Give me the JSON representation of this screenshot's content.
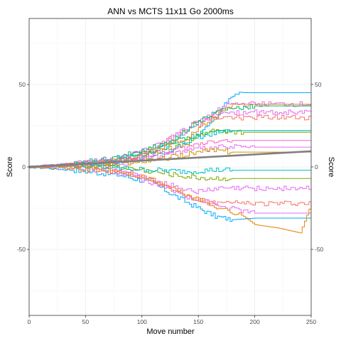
{
  "chart_data": {
    "type": "line",
    "title": "ANN vs MCTS 11x11 Go 2000ms",
    "xlabel": "Move number",
    "ylabel": "Score",
    "ylabel_right": "Score",
    "xlim": [
      0,
      250
    ],
    "ylim": [
      -90,
      90
    ],
    "x_ticks": [
      0,
      50,
      100,
      150,
      200,
      250
    ],
    "y_ticks": [
      -50,
      0,
      50
    ],
    "x_tick_labels": [
      "0",
      "50",
      "100",
      "150",
      "200",
      "250"
    ],
    "y_tick_labels": [
      "-50",
      "0",
      "50"
    ],
    "grid": true,
    "legend": "none",
    "series": [
      {
        "color": "#00a9ff",
        "x": [
          0,
          40,
          80,
          110,
          130,
          150,
          165,
          180,
          200,
          250
        ],
        "y": [
          0,
          -2,
          -5,
          -10,
          -18,
          -25,
          -30,
          -32,
          -31,
          -31
        ]
      },
      {
        "color": "#00a9ff",
        "x": [
          0,
          40,
          80,
          120,
          140,
          160,
          175,
          190,
          250
        ],
        "y": [
          0,
          1,
          3,
          8,
          15,
          25,
          40,
          45,
          45
        ]
      },
      {
        "color": "#f8766d",
        "x": [
          0,
          40,
          80,
          110,
          130,
          150,
          165,
          250
        ],
        "y": [
          0,
          1,
          -2,
          -8,
          -15,
          -20,
          -22,
          -22
        ]
      },
      {
        "color": "#f8766d",
        "x": [
          0,
          40,
          80,
          110,
          130,
          150,
          170,
          250
        ],
        "y": [
          0,
          2,
          4,
          10,
          20,
          28,
          30,
          30
        ]
      },
      {
        "color": "#e76bf3",
        "x": [
          0,
          40,
          80,
          110,
          130,
          150,
          170,
          250
        ],
        "y": [
          0,
          -1,
          -3,
          -8,
          -12,
          -15,
          -13,
          -13
        ]
      },
      {
        "color": "#e76bf3",
        "x": [
          0,
          40,
          80,
          110,
          130,
          150,
          170,
          250
        ],
        "y": [
          0,
          2,
          5,
          12,
          20,
          28,
          33,
          33
        ]
      },
      {
        "color": "#e76bf3",
        "x": [
          0,
          40,
          80,
          110,
          140,
          170,
          200,
          250
        ],
        "y": [
          0,
          1,
          2,
          6,
          10,
          12,
          12,
          12
        ]
      },
      {
        "color": "#e76bf3",
        "x": [
          0,
          40,
          80,
          110,
          140,
          170,
          200,
          250
        ],
        "y": [
          0,
          1,
          -3,
          -10,
          -18,
          -24,
          -28,
          -28
        ]
      },
      {
        "color": "#e76bf3",
        "x": [
          0,
          40,
          80,
          120,
          150,
          175,
          250
        ],
        "y": [
          0,
          1,
          5,
          14,
          26,
          38,
          38
        ]
      },
      {
        "color": "#00be67",
        "x": [
          0,
          40,
          80,
          110,
          130,
          150,
          170,
          200,
          250
        ],
        "y": [
          0,
          1,
          4,
          10,
          18,
          28,
          35,
          37,
          37
        ]
      },
      {
        "color": "#00be67",
        "x": [
          0,
          40,
          80,
          110,
          140,
          160,
          180,
          250
        ],
        "y": [
          0,
          2,
          6,
          12,
          18,
          22,
          22,
          22
        ]
      },
      {
        "color": "#7cae00",
        "x": [
          0,
          40,
          80,
          110,
          140,
          160,
          190,
          250
        ],
        "y": [
          0,
          1,
          3,
          8,
          15,
          22,
          21,
          21
        ]
      },
      {
        "color": "#7cae00",
        "x": [
          0,
          40,
          80,
          110,
          140,
          160,
          180,
          250
        ],
        "y": [
          0,
          1,
          0,
          -3,
          -6,
          -7,
          -7,
          -7
        ]
      },
      {
        "color": "#cd9600",
        "x": [
          0,
          40,
          80,
          110,
          140,
          160,
          180,
          250
        ],
        "y": [
          0,
          1,
          2,
          4,
          8,
          10,
          9,
          9
        ]
      },
      {
        "color": "#00bfc4",
        "x": [
          0,
          40,
          80,
          110,
          140,
          160,
          180,
          250
        ],
        "y": [
          0,
          1,
          -1,
          -2,
          -3,
          -2,
          -2,
          -2
        ]
      },
      {
        "color": "#00bfc4",
        "x": [
          0,
          40,
          80,
          110,
          140,
          160,
          180,
          250
        ],
        "y": [
          0,
          2,
          5,
          10,
          16,
          20,
          22,
          22
        ]
      },
      {
        "color": "#e68613",
        "x": [
          0,
          40,
          80,
          110,
          130,
          150,
          170,
          190,
          200,
          220,
          240,
          250
        ],
        "y": [
          0,
          -1,
          -3,
          -8,
          -14,
          -20,
          -25,
          -30,
          -35,
          -37,
          -40,
          -22
        ]
      },
      {
        "color": "#e68613",
        "x": [
          0,
          40,
          80,
          110,
          140,
          160,
          180,
          250
        ],
        "y": [
          0,
          1,
          4,
          10,
          18,
          28,
          38,
          38
        ]
      },
      {
        "color": "#ff61c3",
        "x": [
          0,
          40,
          80,
          110,
          140,
          160,
          180,
          250
        ],
        "y": [
          0,
          2,
          4,
          8,
          12,
          16,
          16,
          16
        ]
      },
      {
        "color": "#808080",
        "x": [
          0,
          250
        ],
        "y": [
          0,
          9.5
        ]
      }
    ]
  }
}
